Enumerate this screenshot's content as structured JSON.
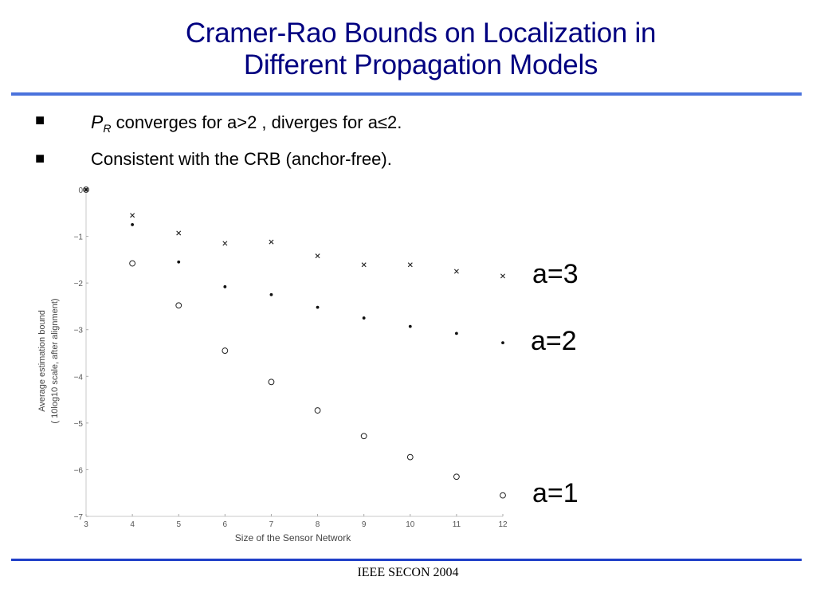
{
  "slide": {
    "title_line1": "Cramer-Rao Bounds on Localization in",
    "title_line2": "Different Propagation Models",
    "bullets": [
      {
        "marker": "■",
        "var": "P",
        "sub": "R",
        "text": " converges for a>2 , diverges for a≤2."
      },
      {
        "marker": "■",
        "text": "Consistent with the CRB (anchor-free)."
      }
    ],
    "footer": "IEEE SECON 2004"
  },
  "chart_data": {
    "type": "scatter",
    "xlabel": "Size of the Sensor Network",
    "ylabel_line1": "Average estimation bound",
    "ylabel_line2": "( 10log10 scale, after alignment)",
    "xlim": [
      3,
      12
    ],
    "ylim": [
      -7,
      0
    ],
    "xticks": [
      3,
      4,
      5,
      6,
      7,
      8,
      9,
      10,
      11,
      12
    ],
    "yticks": [
      0,
      -1,
      -2,
      -3,
      -4,
      -5,
      -6,
      -7
    ],
    "grid": false,
    "series": [
      {
        "name": "a=3",
        "marker": "x",
        "x": [
          3,
          4,
          5,
          6,
          7,
          8,
          9,
          10,
          11,
          12
        ],
        "y": [
          0,
          -0.55,
          -0.93,
          -1.15,
          -1.12,
          -1.42,
          -1.61,
          -1.61,
          -1.75,
          -1.85
        ]
      },
      {
        "name": "a=2",
        "marker": "dot",
        "x": [
          3,
          4,
          5,
          6,
          7,
          8,
          9,
          10,
          11,
          12
        ],
        "y": [
          0,
          -0.75,
          -1.55,
          -2.08,
          -2.25,
          -2.52,
          -2.75,
          -2.93,
          -3.08,
          -3.28
        ]
      },
      {
        "name": "a=1",
        "marker": "circle",
        "x": [
          3,
          4,
          5,
          6,
          7,
          8,
          9,
          10,
          11,
          12
        ],
        "y": [
          0,
          -1.58,
          -2.48,
          -3.45,
          -4.12,
          -4.73,
          -5.28,
          -5.73,
          -6.15,
          -6.55
        ]
      }
    ]
  }
}
